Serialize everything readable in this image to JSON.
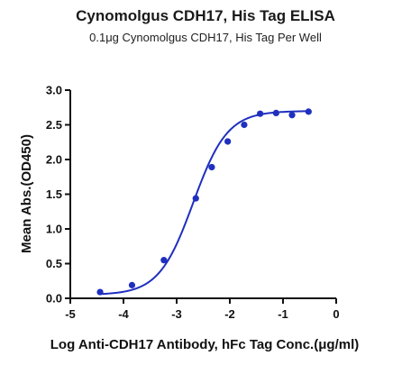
{
  "chart_data": {
    "type": "line",
    "title": "Cynomolgus CDH17, His Tag ELISA",
    "subtitle": "0.1μg Cynomolgus CDH17, His Tag Per Well",
    "xlabel": "Log Anti-CDH17 Antibody, hFc Tag Conc.(μg/ml)",
    "ylabel": "Mean Abs.(OD450)",
    "xlim": [
      -5,
      0
    ],
    "ylim": [
      0,
      3.0
    ],
    "xticks": [
      "-5",
      "-4",
      "-3",
      "-2",
      "-1",
      "0"
    ],
    "yticks": [
      "0.0",
      "0.5",
      "1.0",
      "1.5",
      "2.0",
      "2.5",
      "3.0"
    ],
    "grid": false,
    "color": "#1f2fbf",
    "series": [
      {
        "points_x": [
          -4.44,
          -3.84,
          -3.24,
          -2.64,
          -2.34,
          -2.04,
          -1.73,
          -1.43,
          -1.13,
          -0.83,
          -0.52
        ],
        "points_y": [
          0.09,
          0.19,
          0.55,
          1.44,
          1.89,
          2.26,
          2.5,
          2.66,
          2.67,
          2.64,
          2.69
        ]
      }
    ],
    "fit": {
      "bottom": 0.05,
      "top": 2.7,
      "logEC50": -2.69,
      "hill": 1.35
    }
  }
}
